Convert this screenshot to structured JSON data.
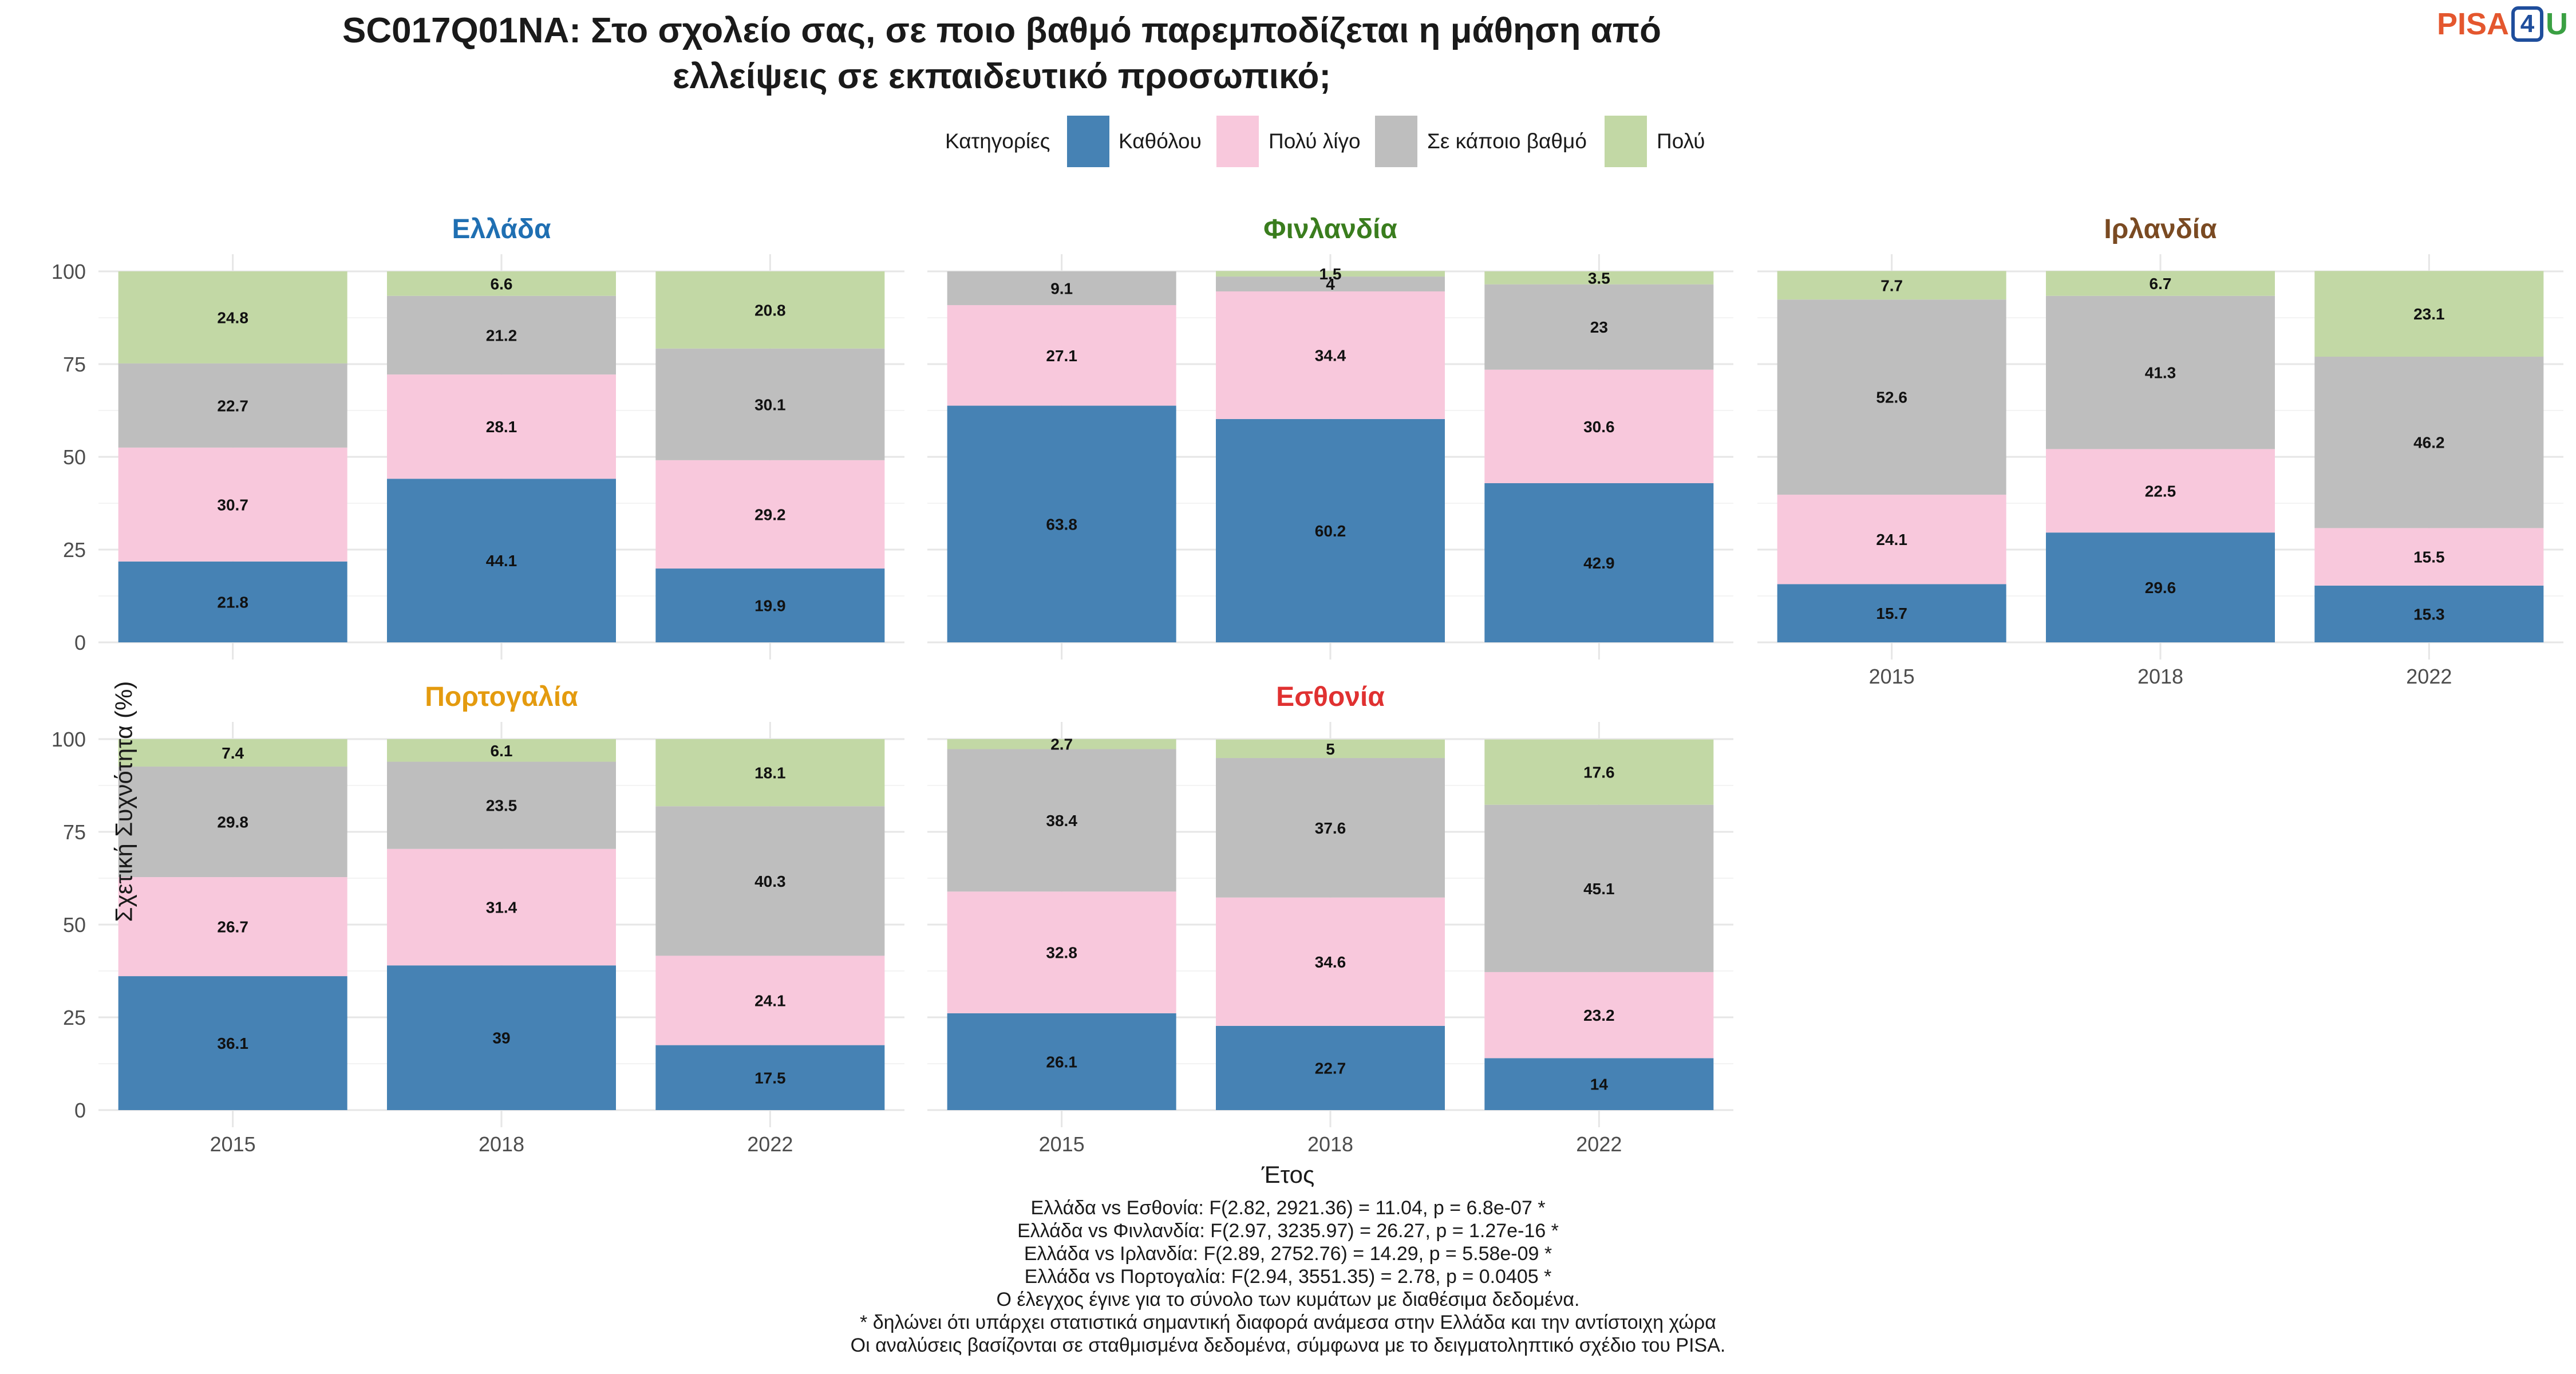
{
  "title": {
    "line1": "SC017Q01NA: Στο σχολείο σας, σε ποιο βαθμό παρεμποδίζεται η μάθηση από",
    "line2": "ελλείψεις σε εκπαιδευτικό προσωπικό;"
  },
  "logo": {
    "part1": "PISA",
    "part2": "4",
    "part3": "U"
  },
  "legend": {
    "title": "Κατηγορίες",
    "items": [
      {
        "label": "Καθόλου",
        "color": "#4682b4"
      },
      {
        "label": "Πολύ λίγο",
        "color": "#f8c8dc"
      },
      {
        "label": "Σε κάποιο βαθμό",
        "color": "#bebebe"
      },
      {
        "label": "Πολύ",
        "color": "#c2d8a5"
      }
    ]
  },
  "ylabel": "Σχετική Συχνότητα (%)",
  "xlabel": "Έτος",
  "notes": [
    "Ελλάδα vs Εσθονία: F(2.82, 2921.36) = 11.04, p = 6.8e-07 *",
    "Ελλάδα vs Φινλανδία: F(2.97, 3235.97) = 26.27, p = 1.27e-16 *",
    "Ελλάδα vs Ιρλανδία: F(2.89, 2752.76) = 14.29, p = 5.58e-09 *",
    "Ελλάδα vs Πορτογαλία: F(2.94, 3551.35) = 2.78, p = 0.0405 *",
    "Ο έλεγχος έγινε για το σύνολο των κυμάτων με διαθέσιμα δεδομένα.",
    "* δηλώνει ότι υπάρχει στατιστικά σημαντική διαφορά ανάμεσα στην Ελλάδα και την αντίστοιχη χώρα",
    "Οι αναλύσεις βασίζονται σε σταθμισμένα δεδομένα, σύμφωνα με το δειγματοληπτικό σχέδιο του PISA."
  ],
  "chart_data": {
    "type": "bar",
    "stacked": true,
    "categories": [
      "2015",
      "2018",
      "2022"
    ],
    "ylim": [
      0,
      100
    ],
    "yticks": [
      0,
      25,
      50,
      75,
      100
    ],
    "grid": true,
    "legend_position": "top",
    "series_names": [
      "Καθόλου",
      "Πολύ λίγο",
      "Σε κάποιο βαθμό",
      "Πολύ"
    ],
    "series_colors": [
      "#4682b4",
      "#f8c8dc",
      "#bebebe",
      "#c2d8a5"
    ],
    "panels": [
      {
        "name": "Ελλάδα",
        "title_color": "#1f6fb2",
        "values": [
          [
            21.8,
            30.7,
            22.7,
            24.8
          ],
          [
            44.1,
            28.1,
            21.2,
            6.6
          ],
          [
            19.9,
            29.2,
            30.1,
            20.8
          ]
        ]
      },
      {
        "name": "Φινλανδία",
        "title_color": "#3a7d1e",
        "values": [
          [
            63.8,
            27.1,
            9.1,
            0
          ],
          [
            60.2,
            34.4,
            4,
            1.5
          ],
          [
            42.9,
            30.6,
            23,
            3.5
          ]
        ]
      },
      {
        "name": "Ιρλανδία",
        "title_color": "#7a4a22",
        "values": [
          [
            15.7,
            24.1,
            52.6,
            7.7
          ],
          [
            29.6,
            22.5,
            41.3,
            6.7
          ],
          [
            15.3,
            15.5,
            46.2,
            23.1
          ]
        ]
      },
      {
        "name": "Πορτογαλία",
        "title_color": "#e49b0f",
        "values": [
          [
            36.1,
            26.7,
            29.8,
            7.4
          ],
          [
            39,
            31.4,
            23.5,
            6.1
          ],
          [
            17.5,
            24.1,
            40.3,
            18.1
          ]
        ]
      },
      {
        "name": "Εσθονία",
        "title_color": "#e03131",
        "values": [
          [
            26.1,
            32.8,
            38.4,
            2.7
          ],
          [
            22.7,
            34.6,
            37.6,
            5
          ],
          [
            14,
            23.2,
            45.1,
            17.6
          ]
        ]
      }
    ]
  }
}
